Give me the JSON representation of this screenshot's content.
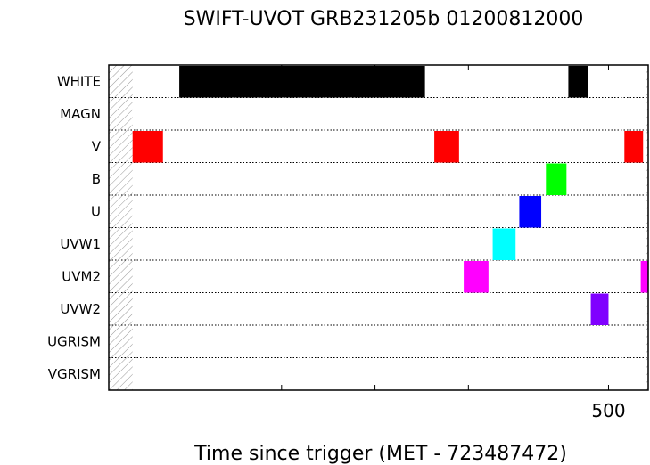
{
  "chart_data": {
    "type": "timeline",
    "title": "SWIFT-UVOT GRB231205b 01200812000",
    "xlabel": "Time since trigger (MET - 723487472)",
    "x_tick_labels": [
      {
        "value": 500,
        "label": "500"
      }
    ],
    "x_minor_ticks": [
      -200,
      0,
      200,
      500
    ],
    "xlim": [
      -570,
      585
    ],
    "hatched_region": [
      -570,
      -519
    ],
    "filters": [
      "WHITE",
      "MAGN",
      "V",
      "B",
      "U",
      "UVW1",
      "UVM2",
      "UVW2",
      "UGRISM",
      "VGRISM"
    ],
    "segments": [
      {
        "filter": "WHITE",
        "start": -419,
        "end": 107,
        "color": "#000000"
      },
      {
        "filter": "WHITE",
        "start": 414,
        "end": 456,
        "color": "#000000"
      },
      {
        "filter": "V",
        "start": -519,
        "end": -454,
        "color": "#ff0000"
      },
      {
        "filter": "V",
        "start": 127,
        "end": 180,
        "color": "#ff0000"
      },
      {
        "filter": "V",
        "start": 534,
        "end": 574,
        "color": "#ff0000"
      },
      {
        "filter": "B",
        "start": 366,
        "end": 410,
        "color": "#00ff00"
      },
      {
        "filter": "U",
        "start": 309,
        "end": 356,
        "color": "#0000ff"
      },
      {
        "filter": "UVW1",
        "start": 252,
        "end": 301,
        "color": "#00ffff"
      },
      {
        "filter": "UVM2",
        "start": 190,
        "end": 243,
        "color": "#ff00ff"
      },
      {
        "filter": "UVM2",
        "start": 569,
        "end": 585,
        "color": "#ff00ff"
      },
      {
        "filter": "UVW2",
        "start": 462,
        "end": 500,
        "color": "#8000ff"
      }
    ]
  }
}
